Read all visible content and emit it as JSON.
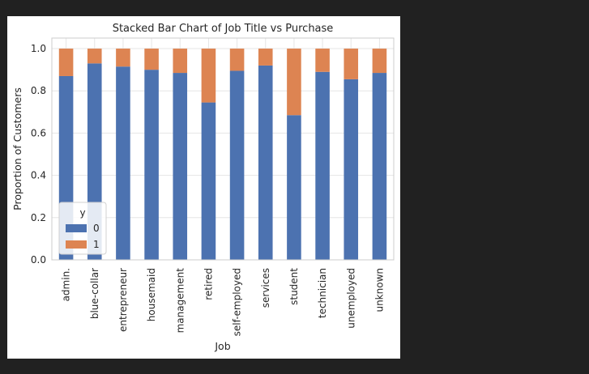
{
  "chart_data": {
    "type": "bar",
    "stacked": true,
    "title": "Stacked Bar Chart of Job Title vs Purchase",
    "xlabel": "Job",
    "ylabel": "Proportion of Customers",
    "ylim": [
      0,
      1.05
    ],
    "yticks": [
      "0.0",
      "0.2",
      "0.4",
      "0.6",
      "0.8",
      "1.0"
    ],
    "grid": true,
    "categories": [
      "admin.",
      "blue-collar",
      "entrepreneur",
      "housemaid",
      "management",
      "retired",
      "self-employed",
      "services",
      "student",
      "technician",
      "unemployed",
      "unknown"
    ],
    "series": [
      {
        "name": "0",
        "color": "#4c72b0",
        "values": [
          0.87,
          0.93,
          0.915,
          0.9,
          0.885,
          0.745,
          0.895,
          0.92,
          0.685,
          0.89,
          0.855,
          0.885
        ]
      },
      {
        "name": "1",
        "color": "#dd8452",
        "values": [
          0.13,
          0.07,
          0.085,
          0.1,
          0.115,
          0.255,
          0.105,
          0.08,
          0.315,
          0.11,
          0.145,
          0.115
        ]
      }
    ],
    "legend": {
      "title": "y",
      "position": "lower-left"
    }
  }
}
